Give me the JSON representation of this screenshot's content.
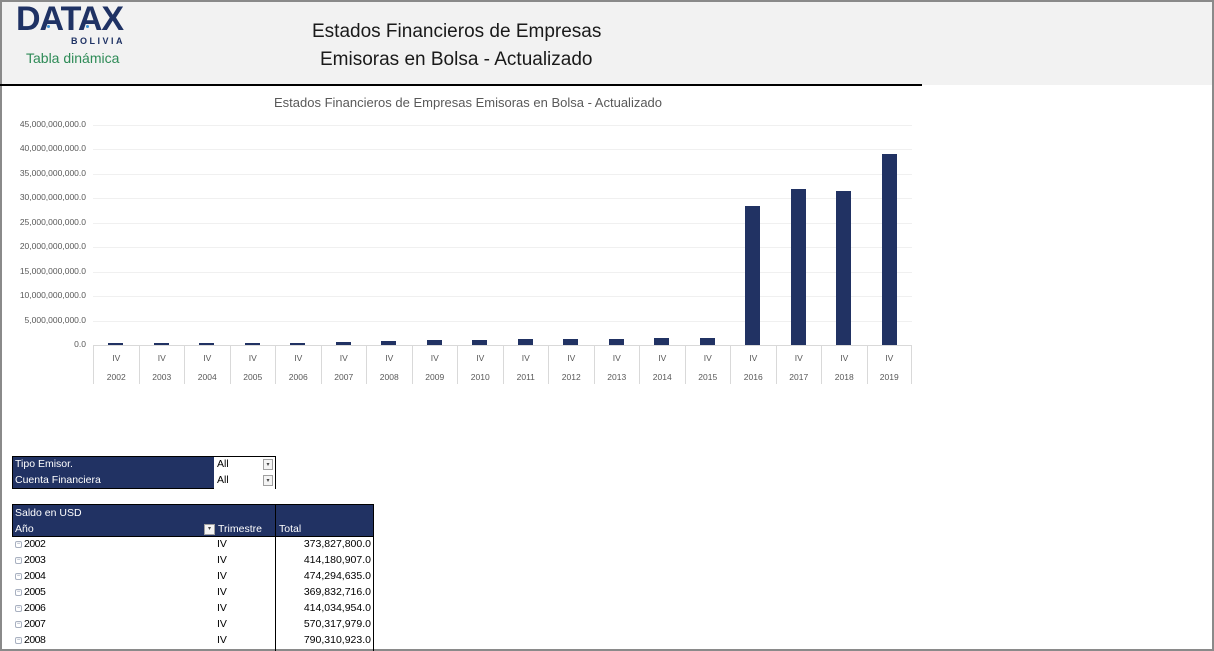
{
  "header": {
    "logo_text": "DATAX",
    "logo_sub": "BOLIVIA",
    "subtitle": "Tabla dinámica",
    "title_line1": "Estados Financieros de Empresas",
    "title_line2": "Emisoras en Bolsa - Actualizado"
  },
  "chart_data": {
    "type": "bar",
    "title": "Estados Financieros de Empresas Emisoras en Bolsa - Actualizado",
    "xlabel": "",
    "ylabel": "",
    "ylim": [
      0,
      45000000000
    ],
    "yticks": [
      "45,000,000,000.0",
      "40,000,000,000.0",
      "35,000,000,000.0",
      "30,000,000,000.0",
      "25,000,000,000.0",
      "20,000,000,000.0",
      "15,000,000,000.0",
      "10,000,000,000.0",
      "5,000,000,000.0",
      "0.0"
    ],
    "grid": true,
    "legend": "none",
    "color": "#213263",
    "categories": [
      "2002",
      "2003",
      "2004",
      "2005",
      "2006",
      "2007",
      "2008",
      "2009",
      "2010",
      "2011",
      "2012",
      "2013",
      "2014",
      "2015",
      "2016",
      "2017",
      "2018",
      "2019"
    ],
    "quarter_labels": [
      "IV",
      "IV",
      "IV",
      "IV",
      "IV",
      "IV",
      "IV",
      "IV",
      "IV",
      "IV",
      "IV",
      "IV",
      "IV",
      "IV",
      "IV",
      "IV",
      "IV",
      "IV"
    ],
    "values": [
      373827800,
      414180907,
      474294635,
      369832716,
      414034954,
      570317979,
      790310923,
      950000000,
      950000000,
      1200000000,
      1250000000,
      1250000000,
      1400000000,
      1400000000,
      28400000000,
      31900000000,
      31500000000,
      39100000000
    ]
  },
  "filters": [
    {
      "label": "Tipo Emisor.",
      "value": "All"
    },
    {
      "label": "Cuenta Financiera",
      "value": "All"
    }
  ],
  "pivot": {
    "measure": "Saldo en USD",
    "col_year": "Año",
    "col_quarter": "Trimestre",
    "col_total": "Total",
    "rows": [
      {
        "year": "2002",
        "quarter": "IV",
        "total": "373,827,800.0"
      },
      {
        "year": "2003",
        "quarter": "IV",
        "total": "414,180,907.0"
      },
      {
        "year": "2004",
        "quarter": "IV",
        "total": "474,294,635.0"
      },
      {
        "year": "2005",
        "quarter": "IV",
        "total": "369,832,716.0"
      },
      {
        "year": "2006",
        "quarter": "IV",
        "total": "414,034,954.0"
      },
      {
        "year": "2007",
        "quarter": "IV",
        "total": "570,317,979.0"
      },
      {
        "year": "2008",
        "quarter": "IV",
        "total": "790,310,923.0"
      }
    ]
  },
  "icons": {
    "dropdown": "▾",
    "collapse": "−"
  }
}
